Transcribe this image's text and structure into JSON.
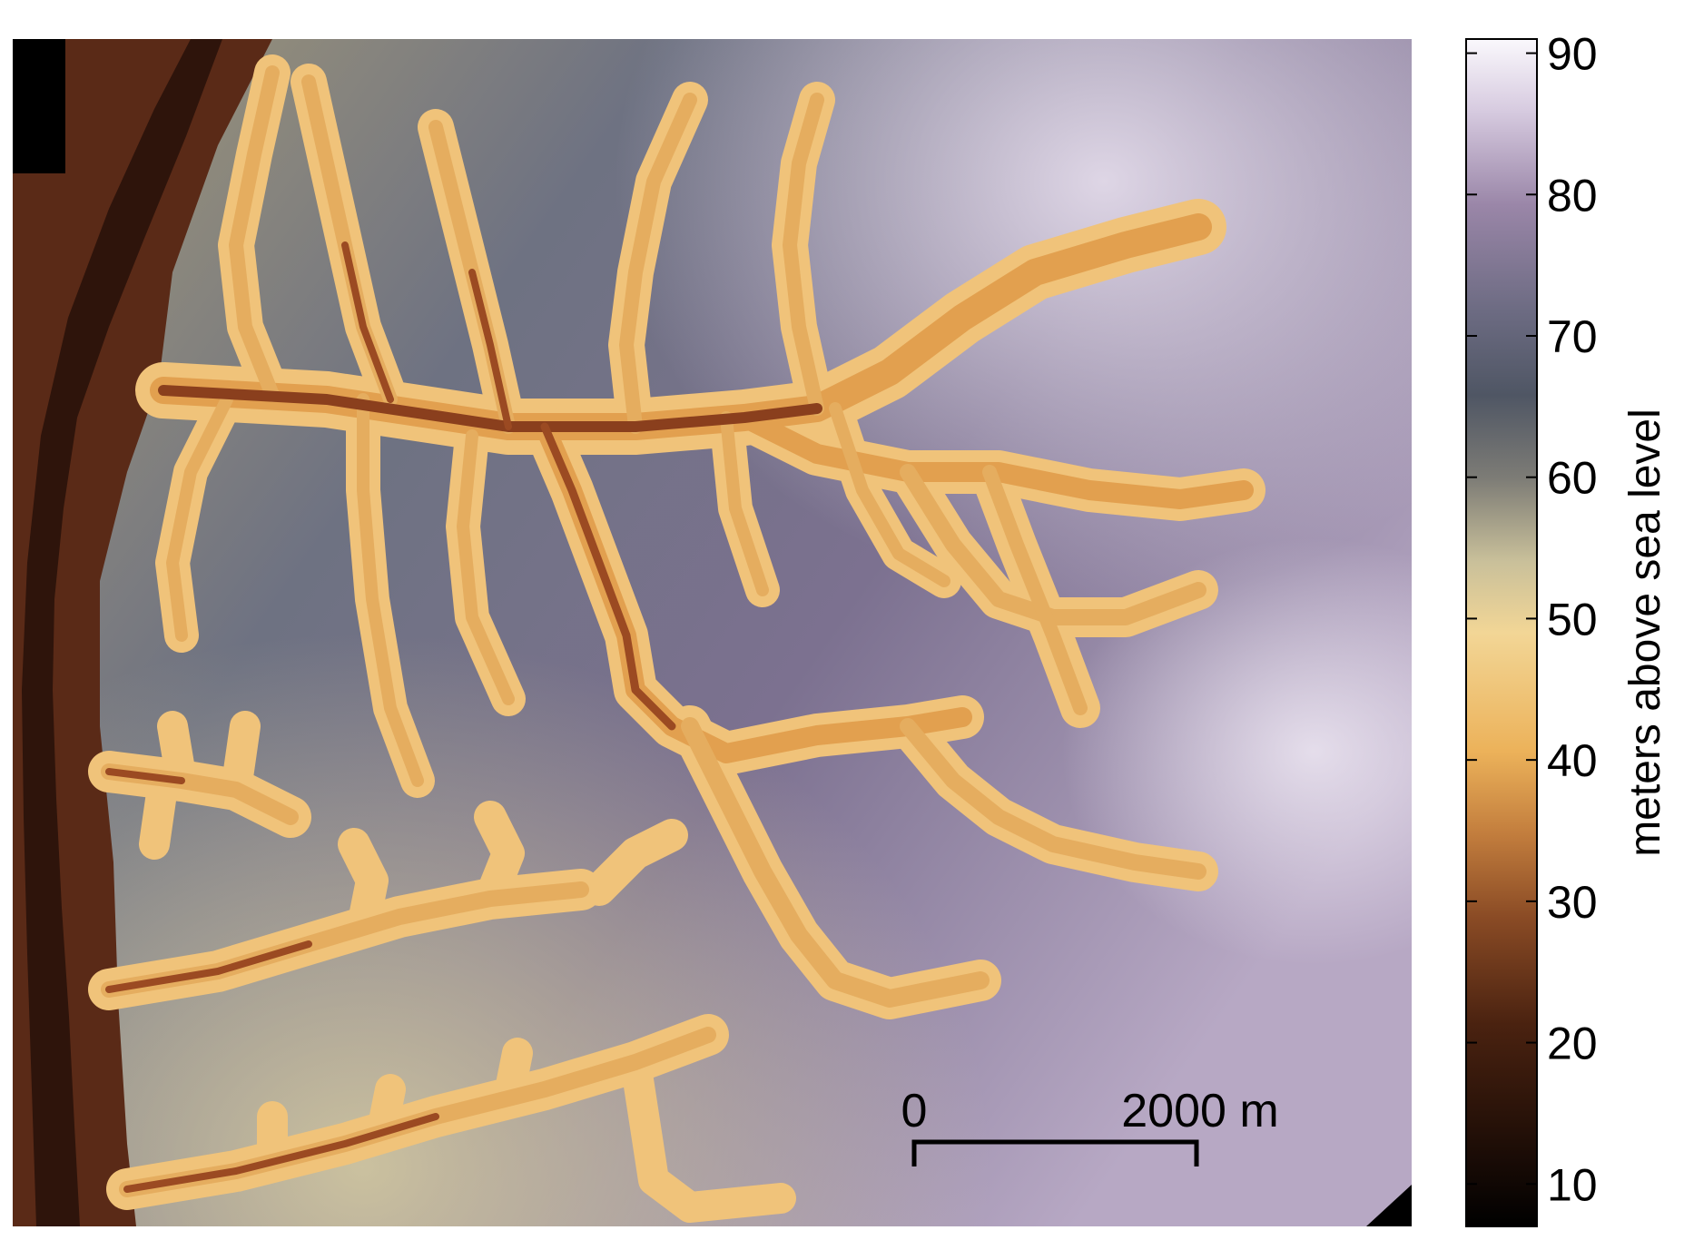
{
  "map": {
    "colors": {
      "river": "#3b1a10",
      "low_terrain": "#5a2a17",
      "valley_floor": "#7a3c1f",
      "valley_wall": "#e8aa55",
      "valley_edge": "#f2d08c",
      "plateau_mid": "#6b6f7a",
      "plateau_high": "#8f7f9a",
      "plateau_top": "#d9cfe0",
      "plateau_tan": "#c9bf98"
    }
  },
  "scale_bar": {
    "start_label": "0",
    "end_label": "2000 m"
  },
  "colorbar": {
    "title": "meters above sea level",
    "ticks": [
      "10",
      "20",
      "30",
      "40",
      "50",
      "60",
      "70",
      "80",
      "90"
    ],
    "tick_values": [
      10,
      20,
      30,
      40,
      50,
      60,
      70,
      80,
      90
    ],
    "range": [
      7,
      91
    ]
  }
}
